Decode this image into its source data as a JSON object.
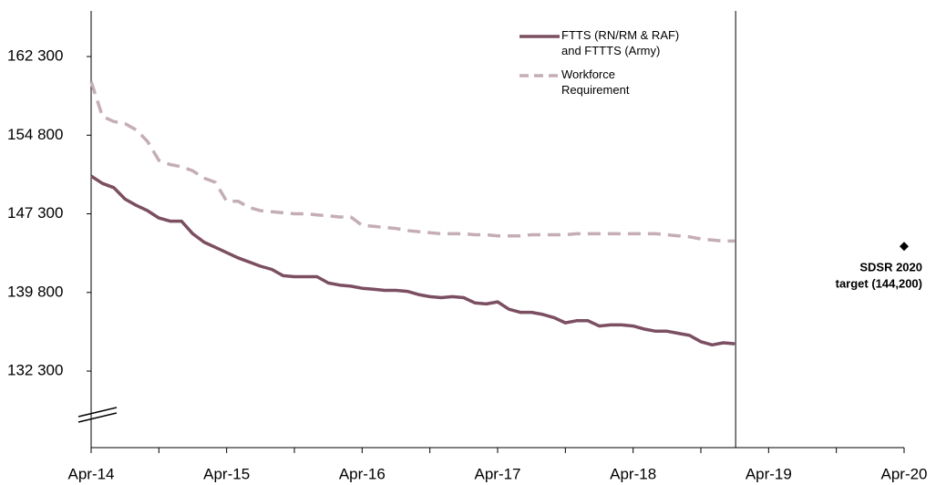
{
  "chart_data": {
    "type": "line",
    "categories": [
      "Apr-14",
      null,
      null,
      null,
      null,
      null,
      null,
      null,
      null,
      null,
      null,
      null,
      "Apr-15",
      null,
      null,
      null,
      null,
      null,
      null,
      null,
      null,
      null,
      null,
      null,
      "Apr-16",
      null,
      null,
      null,
      null,
      null,
      null,
      null,
      null,
      null,
      null,
      null,
      "Apr-17",
      null,
      null,
      null,
      null,
      null,
      null,
      null,
      null,
      null,
      null,
      null,
      "Apr-18",
      null,
      null,
      null,
      null,
      null,
      null,
      null,
      null,
      null,
      null,
      null,
      "Apr-19",
      null,
      null,
      null,
      null,
      null,
      null,
      null,
      null,
      null,
      null,
      null,
      "Apr-20"
    ],
    "series": [
      {
        "name": "FTTS (RN/RM & RAF) and FTTTS (Army)",
        "color": "#7b4f61",
        "dash": false,
        "values": [
          150900,
          150200,
          149800,
          148700,
          148100,
          147600,
          146900,
          146600,
          146600,
          145400,
          144600,
          144100,
          143600,
          143100,
          142700,
          142300,
          142000,
          141400,
          141300,
          141300,
          141300,
          140700,
          140500,
          140400,
          140200,
          140100,
          140000,
          140000,
          139900,
          139600,
          139400,
          139300,
          139400,
          139300,
          138800,
          138700,
          138900,
          138200,
          137900,
          137900,
          137700,
          137400,
          136900,
          137100,
          137100,
          136600,
          136700,
          136700,
          136600,
          136300,
          136100,
          136100,
          135900,
          135700,
          135100,
          134800,
          135000,
          134900,
          null,
          null,
          null,
          null,
          null,
          null,
          null,
          null,
          null,
          null,
          null,
          null,
          null,
          null,
          null
        ]
      },
      {
        "name": "Workforce Requirement",
        "color": "#c4aeb4",
        "dash": true,
        "values": [
          159900,
          156600,
          156100,
          155900,
          155300,
          154200,
          152400,
          152000,
          151800,
          151400,
          150700,
          150300,
          148500,
          148500,
          147900,
          147600,
          147500,
          147400,
          147300,
          147300,
          147200,
          147100,
          147000,
          147000,
          146200,
          146100,
          146000,
          145900,
          145700,
          145600,
          145500,
          145400,
          145400,
          145400,
          145300,
          145300,
          145200,
          145200,
          145200,
          145300,
          145300,
          145300,
          145300,
          145400,
          145400,
          145400,
          145400,
          145400,
          145400,
          145400,
          145400,
          145300,
          145200,
          145100,
          144900,
          144800,
          144700,
          144700,
          null,
          null,
          null,
          null,
          null,
          null,
          null,
          null,
          null,
          null,
          null,
          null,
          null,
          null,
          null
        ]
      }
    ],
    "annotation": {
      "lines": [
        "SDSR 2020",
        "target (144,200)"
      ],
      "value": 144200,
      "category": "Apr-20"
    },
    "ylim": [
      125000,
      166650
    ],
    "yticks": [
      {
        "value": 132300,
        "label": "132 300"
      },
      {
        "value": 139800,
        "label": "139 800"
      },
      {
        "value": 147300,
        "label": "147 300"
      },
      {
        "value": 154800,
        "label": "154 800"
      },
      {
        "value": 162300,
        "label": "162 300"
      }
    ],
    "legend": "top-right"
  }
}
